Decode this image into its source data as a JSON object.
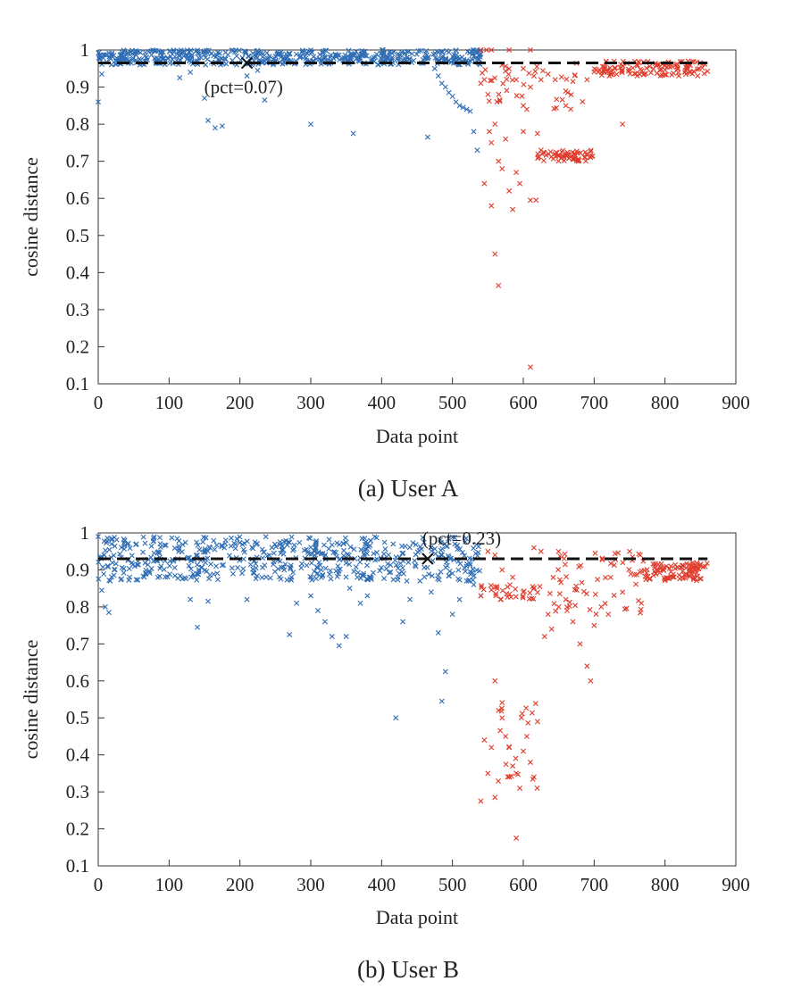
{
  "colors": {
    "normal": "#2e6db4",
    "anomaly": "#e03c2c",
    "threshold": "#111111",
    "axis": "#333333"
  },
  "chart_data": [
    {
      "type": "scatter",
      "caption": "(a) User A",
      "xlabel": "Data point",
      "ylabel": "cosine distance",
      "xlim": [
        0,
        900
      ],
      "ylim": [
        0.1,
        1.0
      ],
      "xticks": [
        0,
        100,
        200,
        300,
        400,
        500,
        600,
        700,
        800,
        900
      ],
      "yticks": [
        0.1,
        0.2,
        0.3,
        0.4,
        0.5,
        0.6,
        0.7,
        0.8,
        0.9,
        1
      ],
      "grid": false,
      "marker": "x",
      "threshold": {
        "y": 0.965,
        "x_range": [
          0,
          860
        ],
        "style": "dashed"
      },
      "annotation": {
        "text": "(pct=0.07)",
        "x": 210,
        "y": 0.965
      },
      "series": [
        {
          "role": "normal",
          "color": "#2e6db4",
          "count": 540,
          "x_range": [
            0,
            540
          ],
          "band": [
            0.96,
            1.0
          ],
          "points": [
            [
              0,
              0.86
            ],
            [
              5,
              0.935
            ],
            [
              115,
              0.925
            ],
            [
              130,
              0.94
            ],
            [
              150,
              0.87
            ],
            [
              155,
              0.81
            ],
            [
              165,
              0.79
            ],
            [
              175,
              0.795
            ],
            [
              210,
              0.93
            ],
            [
              225,
              0.945
            ],
            [
              235,
              0.865
            ],
            [
              300,
              0.8
            ],
            [
              360,
              0.775
            ],
            [
              465,
              0.765
            ],
            [
              475,
              0.95
            ],
            [
              480,
              0.93
            ],
            [
              485,
              0.91
            ],
            [
              490,
              0.9
            ],
            [
              495,
              0.885
            ],
            [
              500,
              0.875
            ],
            [
              505,
              0.86
            ],
            [
              510,
              0.85
            ],
            [
              515,
              0.845
            ],
            [
              520,
              0.84
            ],
            [
              525,
              0.835
            ],
            [
              530,
              0.78
            ],
            [
              535,
              0.73
            ]
          ]
        },
        {
          "role": "anomaly",
          "color": "#e03c2c",
          "count": 320,
          "x_range": [
            540,
            860
          ],
          "points": [
            [
              540,
              1.0
            ],
            [
              548,
              1.0
            ],
            [
              555,
              1.0
            ],
            [
              580,
              1.0
            ],
            [
              610,
              1.0
            ],
            [
              540,
              0.91
            ],
            [
              545,
              0.92
            ],
            [
              550,
              0.88
            ],
            [
              552,
              0.78
            ],
            [
              555,
              0.75
            ],
            [
              560,
              0.8
            ],
            [
              565,
              0.7
            ],
            [
              570,
              0.68
            ],
            [
              575,
              0.76
            ],
            [
              580,
              0.62
            ],
            [
              585,
              0.57
            ],
            [
              590,
              0.67
            ],
            [
              595,
              0.64
            ],
            [
              600,
              0.78
            ],
            [
              555,
              0.58
            ],
            [
              560,
              0.45
            ],
            [
              565,
              0.365
            ],
            [
              610,
              0.145
            ],
            [
              610,
              0.595
            ],
            [
              618,
              0.595
            ],
            [
              620,
              0.775
            ],
            [
              545,
              0.64
            ],
            [
              600,
              0.85
            ],
            [
              605,
              0.84
            ],
            [
              590,
              0.92
            ],
            [
              600,
              0.95
            ],
            [
              610,
              0.9
            ],
            [
              615,
              0.93
            ],
            [
              625,
              0.92
            ],
            [
              635,
              0.935
            ],
            [
              645,
              0.92
            ],
            [
              660,
              0.85
            ],
            [
              670,
              0.915
            ],
            [
              690,
              0.92
            ],
            [
              740,
              0.8
            ],
            [
              625,
              0.73
            ],
            [
              660,
              0.715
            ],
            [
              695,
              0.71
            ]
          ]
        }
      ]
    },
    {
      "type": "scatter",
      "caption": "(b) User B",
      "xlabel": "Data point",
      "ylabel": "cosine distance",
      "xlim": [
        0,
        900
      ],
      "ylim": [
        0.1,
        1.0
      ],
      "xticks": [
        0,
        100,
        200,
        300,
        400,
        500,
        600,
        700,
        800,
        900
      ],
      "yticks": [
        0.1,
        0.2,
        0.3,
        0.4,
        0.5,
        0.6,
        0.7,
        0.8,
        0.9,
        1
      ],
      "grid": false,
      "marker": "x",
      "threshold": {
        "y": 0.93,
        "x_range": [
          0,
          860
        ],
        "style": "dashed"
      },
      "annotation": {
        "text": "(pct=0.23)",
        "x": 465,
        "y": 0.93
      },
      "series": [
        {
          "role": "normal",
          "color": "#2e6db4",
          "count": 540,
          "x_range": [
            0,
            540
          ],
          "band": [
            0.87,
            0.99
          ],
          "points": [
            [
              0,
              0.99
            ],
            [
              5,
              0.845
            ],
            [
              10,
              0.8
            ],
            [
              15,
              0.785
            ],
            [
              130,
              0.82
            ],
            [
              140,
              0.745
            ],
            [
              155,
              0.815
            ],
            [
              210,
              0.82
            ],
            [
              270,
              0.725
            ],
            [
              280,
              0.81
            ],
            [
              300,
              0.83
            ],
            [
              310,
              0.79
            ],
            [
              320,
              0.76
            ],
            [
              330,
              0.72
            ],
            [
              340,
              0.695
            ],
            [
              350,
              0.72
            ],
            [
              355,
              0.85
            ],
            [
              370,
              0.81
            ],
            [
              380,
              0.83
            ],
            [
              420,
              0.5
            ],
            [
              430,
              0.76
            ],
            [
              440,
              0.82
            ],
            [
              470,
              0.84
            ],
            [
              480,
              0.73
            ],
            [
              485,
              0.545
            ],
            [
              490,
              0.625
            ],
            [
              500,
              0.78
            ],
            [
              510,
              0.82
            ],
            [
              520,
              0.87
            ],
            [
              530,
              0.86
            ],
            [
              540,
              0.83
            ]
          ]
        },
        {
          "role": "anomaly",
          "color": "#e03c2c",
          "count": 320,
          "x_range": [
            540,
            860
          ],
          "points": [
            [
              540,
              0.275
            ],
            [
              545,
              0.44
            ],
            [
              550,
              0.35
            ],
            [
              555,
              0.42
            ],
            [
              560,
              0.6
            ],
            [
              560,
              0.285
            ],
            [
              565,
              0.52
            ],
            [
              570,
              0.5
            ],
            [
              575,
              0.45
            ],
            [
              580,
              0.42
            ],
            [
              585,
              0.37
            ],
            [
              590,
              0.35
            ],
            [
              595,
              0.31
            ],
            [
              600,
              0.41
            ],
            [
              605,
              0.45
            ],
            [
              610,
              0.38
            ],
            [
              615,
              0.34
            ],
            [
              620,
              0.49
            ],
            [
              590,
              0.175
            ],
            [
              550,
              0.95
            ],
            [
              560,
              0.94
            ],
            [
              570,
              0.9
            ],
            [
              585,
              0.88
            ],
            [
              600,
              0.84
            ],
            [
              615,
              0.96
            ],
            [
              625,
              0.95
            ],
            [
              630,
              0.72
            ],
            [
              635,
              0.78
            ],
            [
              640,
              0.74
            ],
            [
              650,
              0.8
            ],
            [
              660,
              0.82
            ],
            [
              670,
              0.76
            ],
            [
              680,
              0.7
            ],
            [
              690,
              0.64
            ],
            [
              695,
              0.6
            ],
            [
              700,
              0.75
            ],
            [
              710,
              0.8
            ],
            [
              720,
              0.78
            ],
            [
              740,
              0.84
            ],
            [
              750,
              0.95
            ],
            [
              765,
              0.94
            ]
          ]
        }
      ]
    }
  ]
}
